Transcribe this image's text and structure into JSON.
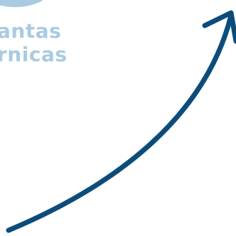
{
  "caption": {
    "line1": "antas",
    "line2": "rnicas"
  },
  "colors": {
    "accent_light": "#a9cbe1",
    "arrow": "#0b4c7c"
  },
  "icons": {
    "shape": "circle-fragment",
    "arrow": "curved-arrow-up-right-icon"
  }
}
